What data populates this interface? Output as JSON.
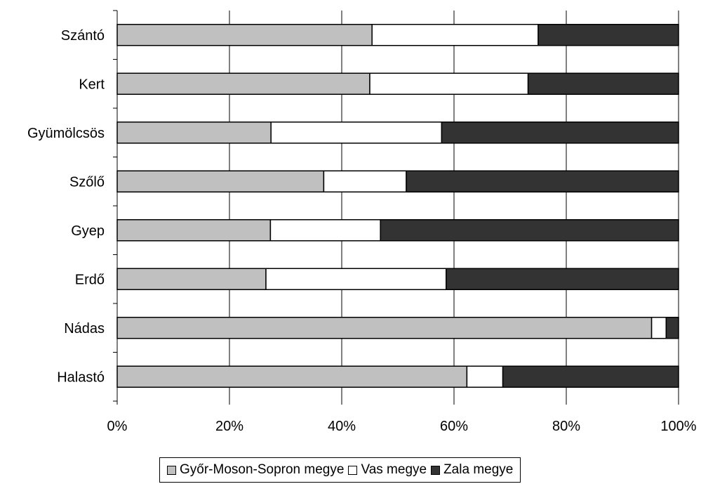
{
  "chart_data": {
    "type": "bar",
    "orientation": "horizontal",
    "stacked": "percent",
    "categories": [
      "Szántó",
      "Kert",
      "Gyümölcsös",
      "Szőlő",
      "Gyep",
      "Erdő",
      "Nádas",
      "Halastó"
    ],
    "series": [
      {
        "name": "Győr-Moson-Sopron megye",
        "color": "#c0c0c0",
        "values": [
          45.4,
          45.0,
          27.4,
          36.8,
          27.3,
          26.5,
          95.2,
          62.3
        ]
      },
      {
        "name": "Vas megye",
        "color": "#ffffff",
        "values": [
          29.6,
          28.2,
          30.4,
          14.7,
          19.6,
          32.1,
          2.6,
          6.4
        ]
      },
      {
        "name": "Zala megye",
        "color": "#333333",
        "values": [
          25.0,
          26.8,
          42.2,
          48.5,
          53.1,
          41.4,
          2.2,
          31.3
        ]
      }
    ],
    "xlim": [
      0,
      100
    ],
    "x_ticks": [
      "0%",
      "20%",
      "40%",
      "60%",
      "80%",
      "100%"
    ],
    "grid": "vertical",
    "legend": "bottom",
    "title": "",
    "xlabel": "",
    "ylabel": ""
  }
}
